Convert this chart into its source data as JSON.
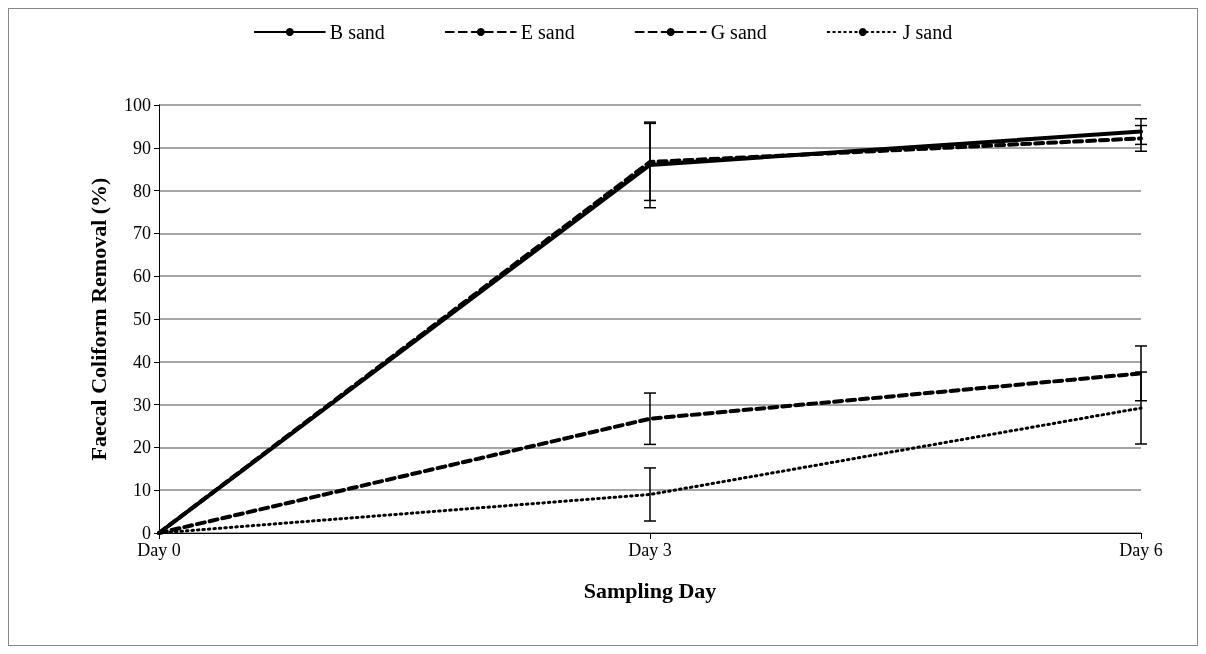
{
  "chart_data": {
    "type": "line",
    "xlabel": "Sampling Day",
    "ylabel": "Faecal Coliform Removal (%)",
    "categories": [
      "Day 0",
      "Day 3",
      "Day 6"
    ],
    "ylim": [
      0,
      100
    ],
    "yticks": [
      0,
      10,
      20,
      30,
      40,
      50,
      60,
      70,
      80,
      90,
      100
    ],
    "grid": "y",
    "legend": "top",
    "marker": "none",
    "series": [
      {
        "name": "B sand",
        "color": "#000000",
        "line_style": "solid",
        "values": [
          0,
          86,
          93.8
        ],
        "errors": [
          null,
          10,
          3
        ]
      },
      {
        "name": "E sand",
        "color": "#000000",
        "line_style": "dashed",
        "values": [
          0,
          86.7,
          92.2
        ],
        "errors": [
          null,
          9,
          3
        ]
      },
      {
        "name": "G sand",
        "color": "#000000",
        "line_style": "dashed",
        "values": [
          0,
          26.7,
          37.3
        ],
        "errors": [
          null,
          6,
          6.4
        ]
      },
      {
        "name": "J sand",
        "color": "#000000",
        "line_style": "dotted",
        "values": [
          0,
          9,
          29.2
        ],
        "errors": [
          null,
          6.2,
          8.4
        ]
      }
    ]
  }
}
